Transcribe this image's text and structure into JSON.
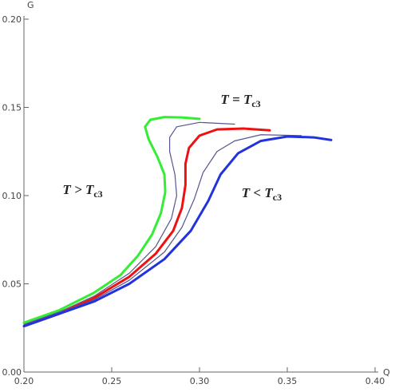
{
  "chart_data": {
    "type": "line",
    "x_label": "Q",
    "y_label": "G",
    "xlim": [
      0.2,
      0.4
    ],
    "xticks": [
      {
        "value": 0.2,
        "label": "0.20"
      },
      {
        "value": 0.25,
        "label": "0.25"
      },
      {
        "value": 0.3,
        "label": "0.30"
      },
      {
        "value": 0.35,
        "label": "0.35"
      },
      {
        "value": 0.4,
        "label": "0.40"
      }
    ],
    "ylim": [
      0,
      0.2
    ],
    "yticks": [
      {
        "value": 0,
        "label": "0.00"
      },
      {
        "value": 0.05,
        "label": "0.05"
      },
      {
        "value": 0.1,
        "label": "0.10"
      },
      {
        "value": 0.15,
        "label": "0.15"
      },
      {
        "value": 0.2,
        "label": "0.20"
      }
    ],
    "series": [
      {
        "color": "#33ee33",
        "width": 3,
        "x": [
          0.2,
          0.22,
          0.24,
          0.255,
          0.265,
          0.273,
          0.278,
          0.2805,
          0.28,
          0.276,
          0.271,
          0.269,
          0.272,
          0.28,
          0.29,
          0.3
        ],
        "values": [
          0.028,
          0.035,
          0.045,
          0.055,
          0.066,
          0.078,
          0.09,
          0.102,
          0.112,
          0.122,
          0.132,
          0.139,
          0.143,
          0.1445,
          0.1443,
          0.1435
        ]
      },
      {
        "color": "#55558f",
        "width": 1.2,
        "x": [
          0.2,
          0.22,
          0.24,
          0.26,
          0.275,
          0.284,
          0.287,
          0.286,
          0.283,
          0.283,
          0.287,
          0.3,
          0.32
        ],
        "values": [
          0.027,
          0.034,
          0.043,
          0.056,
          0.071,
          0.087,
          0.1,
          0.112,
          0.125,
          0.133,
          0.139,
          0.1415,
          0.1405
        ]
      },
      {
        "color": "#ee1111",
        "width": 3,
        "x": [
          0.2,
          0.22,
          0.24,
          0.26,
          0.275,
          0.285,
          0.29,
          0.292,
          0.292,
          0.294,
          0.3,
          0.31,
          0.325,
          0.34
        ],
        "values": [
          0.026,
          0.033,
          0.042,
          0.054,
          0.067,
          0.08,
          0.093,
          0.106,
          0.118,
          0.127,
          0.134,
          0.1375,
          0.138,
          0.137
        ]
      },
      {
        "color": "#55558f",
        "width": 1.2,
        "x": [
          0.2,
          0.24,
          0.26,
          0.28,
          0.29,
          0.297,
          0.302,
          0.31,
          0.32,
          0.335,
          0.358
        ],
        "values": [
          0.026,
          0.041,
          0.052,
          0.068,
          0.082,
          0.098,
          0.113,
          0.125,
          0.131,
          0.1345,
          0.134
        ]
      },
      {
        "color": "#2233dd",
        "width": 3,
        "x": [
          0.2,
          0.24,
          0.26,
          0.28,
          0.295,
          0.305,
          0.312,
          0.322,
          0.335,
          0.35,
          0.365,
          0.375
        ],
        "values": [
          0.026,
          0.04,
          0.05,
          0.064,
          0.08,
          0.097,
          0.112,
          0.124,
          0.131,
          0.1335,
          0.133,
          0.1315
        ]
      }
    ],
    "annotations": [
      {
        "text": "T > T",
        "sub": "c3",
        "x": 0.222,
        "y": 0.101
      },
      {
        "text": "T = T",
        "sub": "c3",
        "x": 0.312,
        "y": 0.152
      },
      {
        "text": "T < T",
        "sub": "c3",
        "x": 0.324,
        "y": 0.099
      }
    ]
  }
}
